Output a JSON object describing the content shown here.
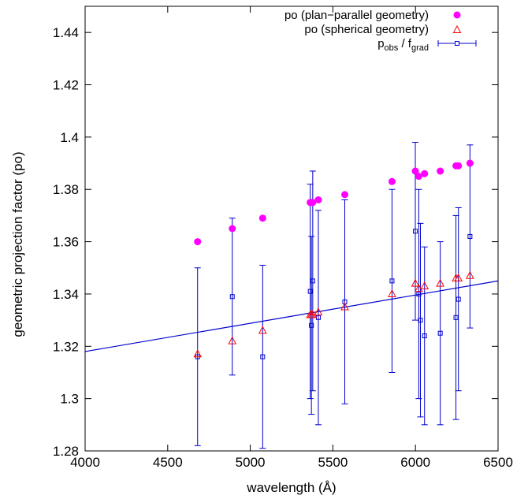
{
  "chart_data": {
    "type": "scatter",
    "xlabel": "wavelength (Å)",
    "ylabel": "geometric projection factor (po)",
    "xlim": [
      4000,
      6500
    ],
    "ylim": [
      1.28,
      1.45
    ],
    "x_ticks": [
      4000,
      4500,
      5000,
      5500,
      6000,
      6500
    ],
    "x_tick_labels": [
      "4000",
      "4500",
      "5000",
      "5500",
      "6000",
      "6500"
    ],
    "y_ticks": [
      1.28,
      1.3,
      1.32,
      1.34,
      1.36,
      1.38,
      1.4,
      1.42,
      1.44
    ],
    "y_tick_labels": [
      "1.28",
      "1.3",
      "1.32",
      "1.34",
      "1.36",
      "1.38",
      "1.4",
      "1.42",
      "1.44"
    ],
    "grid": false,
    "legend_position": "top-right",
    "series": [
      {
        "name": "po (plan−parallel geometry)",
        "marker": "filled-circle",
        "color": "#ff00ff",
        "points": [
          [
            4681,
            1.36
          ],
          [
            4891,
            1.365
          ],
          [
            5075,
            1.369
          ],
          [
            5363,
            1.375
          ],
          [
            5370,
            1.375
          ],
          [
            5378,
            1.375
          ],
          [
            5412,
            1.376
          ],
          [
            5572,
            1.378
          ],
          [
            5858,
            1.383
          ],
          [
            5999,
            1.387
          ],
          [
            6020,
            1.385
          ],
          [
            6055,
            1.386
          ],
          [
            6150,
            1.387
          ],
          [
            6245,
            1.389
          ],
          [
            6260,
            1.389
          ],
          [
            6330,
            1.39
          ]
        ]
      },
      {
        "name": "po (spherical geometry)",
        "marker": "open-triangle",
        "color": "#ff0000",
        "points": [
          [
            4681,
            1.317
          ],
          [
            4891,
            1.322
          ],
          [
            5075,
            1.326
          ],
          [
            5363,
            1.332
          ],
          [
            5370,
            1.332
          ],
          [
            5378,
            1.332
          ],
          [
            5412,
            1.333
          ],
          [
            5572,
            1.335
          ],
          [
            5858,
            1.34
          ],
          [
            5999,
            1.344
          ],
          [
            6020,
            1.342
          ],
          [
            6055,
            1.343
          ],
          [
            6150,
            1.344
          ],
          [
            6245,
            1.346
          ],
          [
            6260,
            1.346
          ],
          [
            6330,
            1.347
          ]
        ]
      },
      {
        "name_main": "p",
        "name_sub1": "obs",
        "name_mid": " / f",
        "name_sub2": "grad",
        "marker": "open-square-errorbar",
        "color": "#0000cc",
        "points": [
          {
            "x": 4681,
            "y": 1.316,
            "lo": 1.282,
            "hi": 1.35
          },
          {
            "x": 4891,
            "y": 1.339,
            "lo": 1.309,
            "hi": 1.369
          },
          {
            "x": 5075,
            "y": 1.316,
            "lo": 1.281,
            "hi": 1.351
          },
          {
            "x": 5363,
            "y": 1.341,
            "lo": 1.3,
            "hi": 1.382
          },
          {
            "x": 5370,
            "y": 1.328,
            "lo": 1.294,
            "hi": 1.362
          },
          {
            "x": 5378,
            "y": 1.345,
            "lo": 1.303,
            "hi": 1.387
          },
          {
            "x": 5412,
            "y": 1.331,
            "lo": 1.29,
            "hi": 1.372
          },
          {
            "x": 5572,
            "y": 1.337,
            "lo": 1.298,
            "hi": 1.376
          },
          {
            "x": 5858,
            "y": 1.345,
            "lo": 1.31,
            "hi": 1.38
          },
          {
            "x": 5999,
            "y": 1.364,
            "lo": 1.33,
            "hi": 1.398
          },
          {
            "x": 6020,
            "y": 1.34,
            "lo": 1.3,
            "hi": 1.38
          },
          {
            "x": 6030,
            "y": 1.33,
            "lo": 1.293,
            "hi": 1.367
          },
          {
            "x": 6055,
            "y": 1.324,
            "lo": 1.29,
            "hi": 1.358
          },
          {
            "x": 6150,
            "y": 1.325,
            "lo": 1.29,
            "hi": 1.36
          },
          {
            "x": 6245,
            "y": 1.331,
            "lo": 1.292,
            "hi": 1.37
          },
          {
            "x": 6260,
            "y": 1.338,
            "lo": 1.303,
            "hi": 1.373
          },
          {
            "x": 6330,
            "y": 1.362,
            "lo": 1.327,
            "hi": 1.397
          }
        ]
      }
    ],
    "fit_line": {
      "color": "#0000cc",
      "x": [
        4000,
        6500
      ],
      "y": [
        1.318,
        1.345
      ]
    }
  }
}
